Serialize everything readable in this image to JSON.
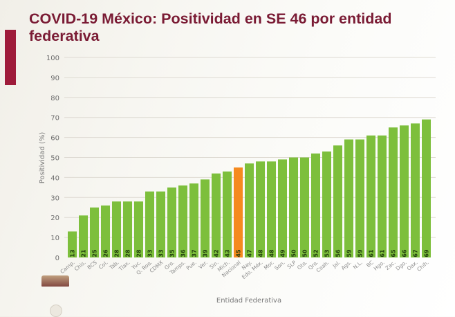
{
  "title": "COVID-19 México: Positividad en SE 46 por entidad federativa",
  "colors": {
    "bar": "#7dbf3c",
    "highlight": "#f58a1f",
    "title": "#7a1b34",
    "accent": "#9e1b3a",
    "grid": "#dedad2"
  },
  "chart_data": {
    "type": "bar",
    "title": "COVID-19 México: Positividad en SE 46 por entidad federativa",
    "xlabel": "Entidad Federativa",
    "ylabel": "Positividad (%)",
    "ylim": [
      0,
      100
    ],
    "yticks": [
      0,
      10,
      20,
      30,
      40,
      50,
      60,
      70,
      80,
      90,
      100
    ],
    "grid": true,
    "highlight_category": "Nacional",
    "categories": [
      "Camp.",
      "Chis.",
      "BCS",
      "Col.",
      "Tab.",
      "Tlax.",
      "Yuc.",
      "Q. Roo.",
      "CDMX",
      "Gro.",
      "Tamps.",
      "Pue.",
      "Ver.",
      "Sin.",
      "Mich.",
      "Nacional",
      "Nay.",
      "Edo. Méx.",
      "Mor.",
      "Son.",
      "SLP",
      "Gto.",
      "Qro.",
      "Coah.",
      "Jal.",
      "Ags.",
      "N.L.",
      "BC",
      "Hgo.",
      "Zac.",
      "Dgo.",
      "Oax.",
      "Chih."
    ],
    "values": [
      13,
      21,
      25,
      26,
      28,
      28,
      28,
      33,
      33,
      35,
      36,
      37,
      39,
      42,
      43,
      45,
      47,
      48,
      48,
      49,
      50,
      50,
      52,
      53,
      56,
      59,
      59,
      61,
      61,
      65,
      66,
      67,
      69
    ]
  }
}
